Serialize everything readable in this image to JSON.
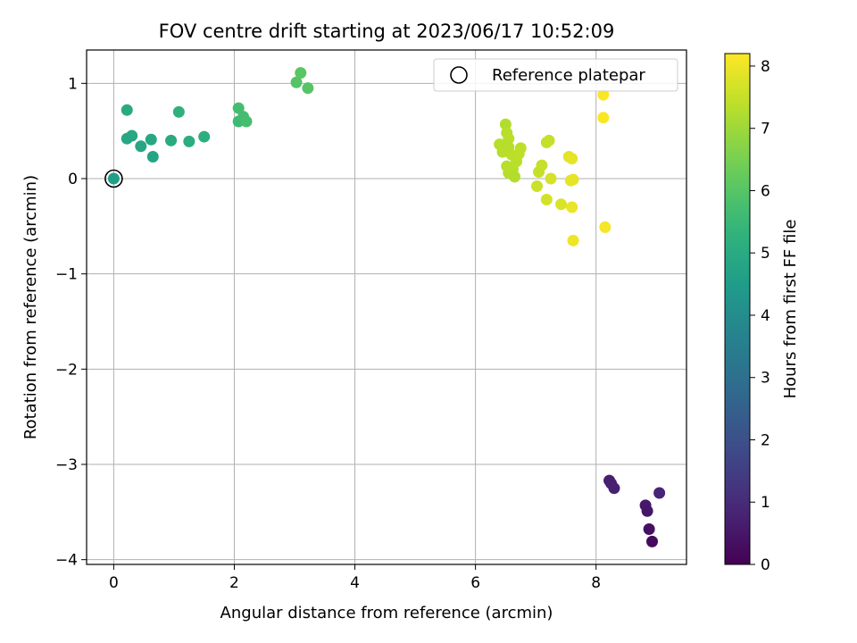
{
  "chart_data": {
    "type": "scatter",
    "title": "FOV centre drift starting at 2023/06/17 10:52:09",
    "xlabel": "Angular distance from reference (arcmin)",
    "ylabel": "Rotation from reference (arcmin)",
    "xlim": [
      -0.45,
      9.5
    ],
    "ylim": [
      -4.05,
      1.35
    ],
    "xticks": [
      0,
      2,
      4,
      6,
      8
    ],
    "xtick_labels": [
      "0",
      "2",
      "4",
      "6",
      "8"
    ],
    "yticks": [
      -4,
      -3,
      -2,
      -1,
      0,
      1
    ],
    "ytick_labels": [
      "−4",
      "−3",
      "−2",
      "−1",
      "0",
      "1"
    ],
    "grid": true,
    "legend": {
      "placement": "top-right",
      "entries": [
        "Reference platepar"
      ]
    },
    "reference": {
      "label": "Reference platepar",
      "x": 0,
      "y": 0
    },
    "colorbar": {
      "label": "Hours from first FF file",
      "min": 0,
      "max": 8.2,
      "ticks": [
        0,
        1,
        2,
        3,
        4,
        5,
        6,
        7,
        8
      ],
      "tick_labels": [
        "0",
        "1",
        "2",
        "3",
        "4",
        "5",
        "6",
        "7",
        "8"
      ],
      "colormap": "viridis"
    },
    "points": [
      {
        "x": 8.22,
        "y": -3.17,
        "c": 0.7
      },
      {
        "x": 8.25,
        "y": -3.2,
        "c": 0.72
      },
      {
        "x": 8.3,
        "y": -3.25,
        "c": 0.75
      },
      {
        "x": 8.82,
        "y": -3.43,
        "c": 0.55
      },
      {
        "x": 8.85,
        "y": -3.49,
        "c": 0.5
      },
      {
        "x": 8.88,
        "y": -3.68,
        "c": 0.35
      },
      {
        "x": 8.93,
        "y": -3.81,
        "c": 0.2
      },
      {
        "x": 9.05,
        "y": -3.3,
        "c": 0.85
      },
      {
        "x": 0.0,
        "y": 0.0,
        "c": 4.6
      },
      {
        "x": 0.22,
        "y": 0.72,
        "c": 5.0
      },
      {
        "x": 0.22,
        "y": 0.42,
        "c": 4.9
      },
      {
        "x": 0.3,
        "y": 0.45,
        "c": 4.9
      },
      {
        "x": 0.45,
        "y": 0.34,
        "c": 4.85
      },
      {
        "x": 0.65,
        "y": 0.23,
        "c": 4.8
      },
      {
        "x": 0.62,
        "y": 0.41,
        "c": 4.9
      },
      {
        "x": 0.95,
        "y": 0.4,
        "c": 5.0
      },
      {
        "x": 1.08,
        "y": 0.7,
        "c": 5.2
      },
      {
        "x": 1.25,
        "y": 0.39,
        "c": 5.1
      },
      {
        "x": 1.5,
        "y": 0.44,
        "c": 5.15
      },
      {
        "x": 2.07,
        "y": 0.74,
        "c": 5.7
      },
      {
        "x": 2.07,
        "y": 0.6,
        "c": 5.6
      },
      {
        "x": 2.15,
        "y": 0.65,
        "c": 5.7
      },
      {
        "x": 2.2,
        "y": 0.6,
        "c": 5.75
      },
      {
        "x": 3.03,
        "y": 1.01,
        "c": 6.0
      },
      {
        "x": 3.1,
        "y": 1.11,
        "c": 6.05
      },
      {
        "x": 3.22,
        "y": 0.95,
        "c": 6.0
      },
      {
        "x": 6.4,
        "y": 0.36,
        "c": 7.3
      },
      {
        "x": 6.45,
        "y": 0.28,
        "c": 7.3
      },
      {
        "x": 6.5,
        "y": 0.57,
        "c": 7.25
      },
      {
        "x": 6.52,
        "y": 0.48,
        "c": 7.3
      },
      {
        "x": 6.55,
        "y": 0.42,
        "c": 7.35
      },
      {
        "x": 6.55,
        "y": 0.33,
        "c": 7.3
      },
      {
        "x": 6.52,
        "y": 0.13,
        "c": 7.3
      },
      {
        "x": 6.55,
        "y": 0.06,
        "c": 7.3
      },
      {
        "x": 6.6,
        "y": 0.25,
        "c": 7.35
      },
      {
        "x": 6.62,
        "y": 0.1,
        "c": 7.3
      },
      {
        "x": 6.65,
        "y": 0.02,
        "c": 7.25
      },
      {
        "x": 6.68,
        "y": 0.18,
        "c": 7.35
      },
      {
        "x": 6.72,
        "y": 0.26,
        "c": 7.4
      },
      {
        "x": 6.75,
        "y": 0.32,
        "c": 7.4
      },
      {
        "x": 7.02,
        "y": -0.08,
        "c": 7.55
      },
      {
        "x": 7.05,
        "y": 0.07,
        "c": 7.5
      },
      {
        "x": 7.1,
        "y": 0.14,
        "c": 7.5
      },
      {
        "x": 7.18,
        "y": 0.38,
        "c": 7.45
      },
      {
        "x": 7.22,
        "y": 0.4,
        "c": 7.5
      },
      {
        "x": 7.18,
        "y": -0.22,
        "c": 7.65
      },
      {
        "x": 7.25,
        "y": 0.0,
        "c": 7.7
      },
      {
        "x": 7.42,
        "y": -0.27,
        "c": 7.75
      },
      {
        "x": 7.55,
        "y": 0.23,
        "c": 7.85
      },
      {
        "x": 7.6,
        "y": 0.21,
        "c": 7.9
      },
      {
        "x": 7.58,
        "y": -0.02,
        "c": 7.9
      },
      {
        "x": 7.62,
        "y": -0.01,
        "c": 7.9
      },
      {
        "x": 7.6,
        "y": -0.3,
        "c": 7.95
      },
      {
        "x": 7.62,
        "y": -0.65,
        "c": 8.0
      },
      {
        "x": 8.12,
        "y": 0.88,
        "c": 8.15
      },
      {
        "x": 8.12,
        "y": 0.64,
        "c": 8.15
      },
      {
        "x": 8.15,
        "y": -0.51,
        "c": 8.1
      }
    ]
  }
}
